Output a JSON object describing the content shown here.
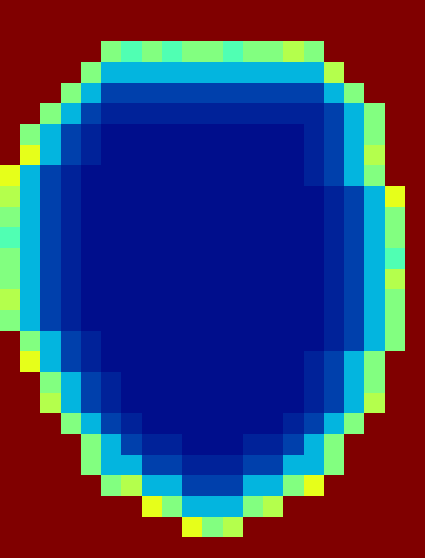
{
  "chart_data": {
    "type": "heatmap",
    "tick_labels": false,
    "zlim": [
      0,
      1
    ],
    "z": [
      [
        1,
        1,
        1,
        1,
        1,
        1,
        1,
        1,
        1,
        1,
        1,
        1,
        1,
        1,
        1,
        1,
        1,
        1,
        1,
        1,
        1
      ],
      [
        1,
        1,
        1,
        1,
        1,
        1,
        1,
        1,
        1,
        1,
        1,
        1,
        1,
        1,
        1,
        1,
        1,
        1,
        1,
        1,
        1
      ],
      [
        1,
        1,
        1,
        1,
        1,
        0.5,
        0.45,
        0.5,
        0.45,
        0.5,
        0.5,
        0.45,
        0.5,
        0.5,
        0.55,
        0.5,
        1,
        1,
        1,
        1,
        1
      ],
      [
        1,
        1,
        1,
        1,
        0.5,
        0.28,
        0.28,
        0.28,
        0.28,
        0.28,
        0.28,
        0.28,
        0.28,
        0.28,
        0.28,
        0.28,
        0.55,
        1,
        1,
        1,
        1
      ],
      [
        1,
        1,
        1,
        0.5,
        0.28,
        0.13,
        0.13,
        0.13,
        0.13,
        0.13,
        0.13,
        0.13,
        0.13,
        0.13,
        0.13,
        0.13,
        0.28,
        0.5,
        1,
        1,
        1
      ],
      [
        1,
        1,
        0.5,
        0.28,
        0.13,
        0.07,
        0.07,
        0.07,
        0.07,
        0.07,
        0.07,
        0.07,
        0.07,
        0.07,
        0.07,
        0.07,
        0.13,
        0.28,
        0.5,
        1,
        1
      ],
      [
        1,
        0.5,
        0.28,
        0.13,
        0.07,
        0.03,
        0.03,
        0.03,
        0.03,
        0.03,
        0.03,
        0.03,
        0.03,
        0.03,
        0.03,
        0.07,
        0.13,
        0.28,
        0.5,
        1,
        1
      ],
      [
        1,
        0.6,
        0.28,
        0.13,
        0.07,
        0.03,
        0.03,
        0.03,
        0.03,
        0.03,
        0.03,
        0.03,
        0.03,
        0.03,
        0.03,
        0.07,
        0.13,
        0.28,
        0.55,
        1,
        1
      ],
      [
        0.6,
        0.28,
        0.13,
        0.07,
        0.03,
        0.03,
        0.03,
        0.03,
        0.03,
        0.03,
        0.03,
        0.03,
        0.03,
        0.03,
        0.03,
        0.07,
        0.13,
        0.28,
        0.5,
        1,
        1
      ],
      [
        0.55,
        0.28,
        0.13,
        0.07,
        0.03,
        0.03,
        0.03,
        0.03,
        0.03,
        0.03,
        0.03,
        0.03,
        0.03,
        0.03,
        0.03,
        0.03,
        0.07,
        0.13,
        0.28,
        0.6,
        1
      ],
      [
        0.5,
        0.28,
        0.13,
        0.07,
        0.03,
        0.03,
        0.03,
        0.03,
        0.03,
        0.03,
        0.03,
        0.03,
        0.03,
        0.03,
        0.03,
        0.03,
        0.07,
        0.13,
        0.28,
        0.5,
        1
      ],
      [
        0.45,
        0.28,
        0.13,
        0.07,
        0.03,
        0.03,
        0.03,
        0.03,
        0.03,
        0.03,
        0.03,
        0.03,
        0.03,
        0.03,
        0.03,
        0.03,
        0.07,
        0.13,
        0.28,
        0.5,
        1
      ],
      [
        0.5,
        0.28,
        0.13,
        0.07,
        0.03,
        0.03,
        0.03,
        0.03,
        0.03,
        0.03,
        0.03,
        0.03,
        0.03,
        0.03,
        0.03,
        0.03,
        0.07,
        0.13,
        0.28,
        0.45,
        1
      ],
      [
        0.5,
        0.28,
        0.13,
        0.07,
        0.03,
        0.03,
        0.03,
        0.03,
        0.03,
        0.03,
        0.03,
        0.03,
        0.03,
        0.03,
        0.03,
        0.03,
        0.07,
        0.13,
        0.28,
        0.55,
        1
      ],
      [
        0.55,
        0.28,
        0.13,
        0.07,
        0.03,
        0.03,
        0.03,
        0.03,
        0.03,
        0.03,
        0.03,
        0.03,
        0.03,
        0.03,
        0.03,
        0.03,
        0.07,
        0.13,
        0.28,
        0.5,
        1
      ],
      [
        0.5,
        0.28,
        0.13,
        0.07,
        0.03,
        0.03,
        0.03,
        0.03,
        0.03,
        0.03,
        0.03,
        0.03,
        0.03,
        0.03,
        0.03,
        0.03,
        0.07,
        0.13,
        0.28,
        0.5,
        1
      ],
      [
        1,
        0.5,
        0.28,
        0.13,
        0.07,
        0.03,
        0.03,
        0.03,
        0.03,
        0.03,
        0.03,
        0.03,
        0.03,
        0.03,
        0.03,
        0.03,
        0.07,
        0.13,
        0.28,
        0.5,
        1
      ],
      [
        1,
        0.6,
        0.28,
        0.13,
        0.07,
        0.03,
        0.03,
        0.03,
        0.03,
        0.03,
        0.03,
        0.03,
        0.03,
        0.03,
        0.03,
        0.07,
        0.13,
        0.28,
        0.5,
        1,
        1
      ],
      [
        1,
        1,
        0.5,
        0.28,
        0.13,
        0.07,
        0.03,
        0.03,
        0.03,
        0.03,
        0.03,
        0.03,
        0.03,
        0.03,
        0.03,
        0.07,
        0.13,
        0.28,
        0.5,
        1,
        1
      ],
      [
        1,
        1,
        0.55,
        0.28,
        0.13,
        0.07,
        0.03,
        0.03,
        0.03,
        0.03,
        0.03,
        0.03,
        0.03,
        0.03,
        0.03,
        0.07,
        0.13,
        0.28,
        0.55,
        1,
        1
      ],
      [
        1,
        1,
        1,
        0.5,
        0.28,
        0.13,
        0.07,
        0.03,
        0.03,
        0.03,
        0.03,
        0.03,
        0.03,
        0.03,
        0.07,
        0.13,
        0.28,
        0.5,
        1,
        1,
        1
      ],
      [
        1,
        1,
        1,
        1,
        0.5,
        0.28,
        0.13,
        0.07,
        0.07,
        0.03,
        0.03,
        0.03,
        0.07,
        0.07,
        0.13,
        0.28,
        0.5,
        1,
        1,
        1,
        1
      ],
      [
        1,
        1,
        1,
        1,
        0.5,
        0.28,
        0.28,
        0.13,
        0.13,
        0.07,
        0.07,
        0.07,
        0.13,
        0.13,
        0.28,
        0.28,
        0.5,
        1,
        1,
        1,
        1
      ],
      [
        1,
        1,
        1,
        1,
        1,
        0.5,
        0.55,
        0.28,
        0.28,
        0.13,
        0.13,
        0.13,
        0.28,
        0.28,
        0.5,
        0.6,
        1,
        1,
        1,
        1,
        1
      ],
      [
        1,
        1,
        1,
        1,
        1,
        1,
        1,
        0.6,
        0.5,
        0.28,
        0.28,
        0.28,
        0.5,
        0.55,
        1,
        1,
        1,
        1,
        1,
        1,
        1
      ],
      [
        1,
        1,
        1,
        1,
        1,
        1,
        1,
        1,
        1,
        0.6,
        0.5,
        0.55,
        1,
        1,
        1,
        1,
        1,
        1,
        1,
        1,
        1
      ],
      [
        1,
        1,
        1,
        1,
        1,
        1,
        1,
        1,
        1,
        1,
        1,
        1,
        1,
        1,
        1,
        1,
        1,
        1,
        1,
        1,
        1
      ]
    ]
  }
}
